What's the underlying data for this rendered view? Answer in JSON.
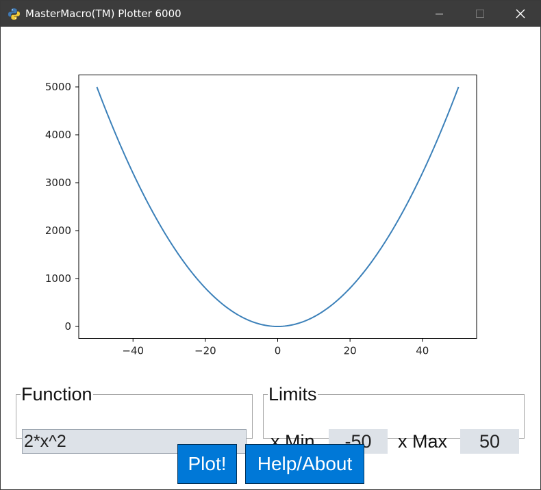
{
  "window": {
    "title": "MasterMacro(TM) Plotter 6000",
    "icon": "python-icon",
    "controls": [
      "minimize-icon",
      "maximize-icon",
      "close-icon"
    ]
  },
  "chart_data": {
    "type": "line",
    "title": "",
    "xlabel": "",
    "ylabel": "",
    "function": "2*x^2",
    "x_range": [
      -50,
      50
    ],
    "xlim": [
      -55,
      55
    ],
    "ylim": [
      -250,
      5250
    ],
    "xticks": [
      -40,
      -20,
      0,
      20,
      40
    ],
    "xtick_labels": [
      "−40",
      "−20",
      "0",
      "20",
      "40"
    ],
    "yticks": [
      0,
      1000,
      2000,
      3000,
      4000,
      5000
    ],
    "ytick_labels": [
      "0",
      "1000",
      "2000",
      "3000",
      "4000",
      "5000"
    ],
    "series": [
      {
        "name": "2*x^2",
        "color": "#3b80b9",
        "x": [
          -50,
          -40,
          -30,
          -20,
          -10,
          0,
          10,
          20,
          30,
          40,
          50
        ],
        "y": [
          5000,
          3200,
          1800,
          800,
          200,
          0,
          200,
          800,
          1800,
          3200,
          5000
        ]
      }
    ],
    "grid": false,
    "legend": "none"
  },
  "function_group": {
    "label": "Function",
    "value": "2*x^2"
  },
  "limits_group": {
    "label": "Limits",
    "xmin_label": "x Min",
    "xmin_value": "-50",
    "xmax_label": "x Max",
    "xmax_value": "50"
  },
  "buttons": {
    "plot_label": "Plot!",
    "help_label": "Help/About"
  },
  "colors": {
    "accent": "#0078d7",
    "titlebar": "#3c3c3c",
    "input_bg": "#dde2e8",
    "line": "#3b80b9"
  }
}
